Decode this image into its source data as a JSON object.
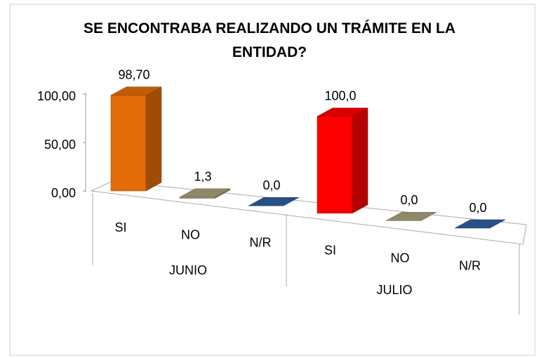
{
  "chart_data": {
    "type": "bar3d",
    "title": "SE ENCONTRABA REALIZANDO UN TRÁMITE EN LA ENTIDAD?",
    "categories": [
      "SI",
      "NO",
      "N/R",
      "SI",
      "NO",
      "N/R"
    ],
    "groups": [
      "JUNIO",
      "JULIO"
    ],
    "values": [
      98.7,
      1.3,
      0,
      100,
      0,
      0
    ],
    "value_labels": [
      "98,70",
      "1,3",
      "0,0",
      "100,0",
      "0,0",
      "0,0"
    ],
    "colors": [
      "#e36c09",
      "#a6a07a",
      "#2e5f9e",
      "#ff0000",
      "#a6a07a",
      "#2e5f9e"
    ],
    "ylim": [
      0,
      100
    ],
    "yticks": [
      {
        "value": 0,
        "label": "0,00"
      },
      {
        "value": 50,
        "label": "50,00"
      },
      {
        "value": 100,
        "label": "100,00"
      }
    ]
  }
}
